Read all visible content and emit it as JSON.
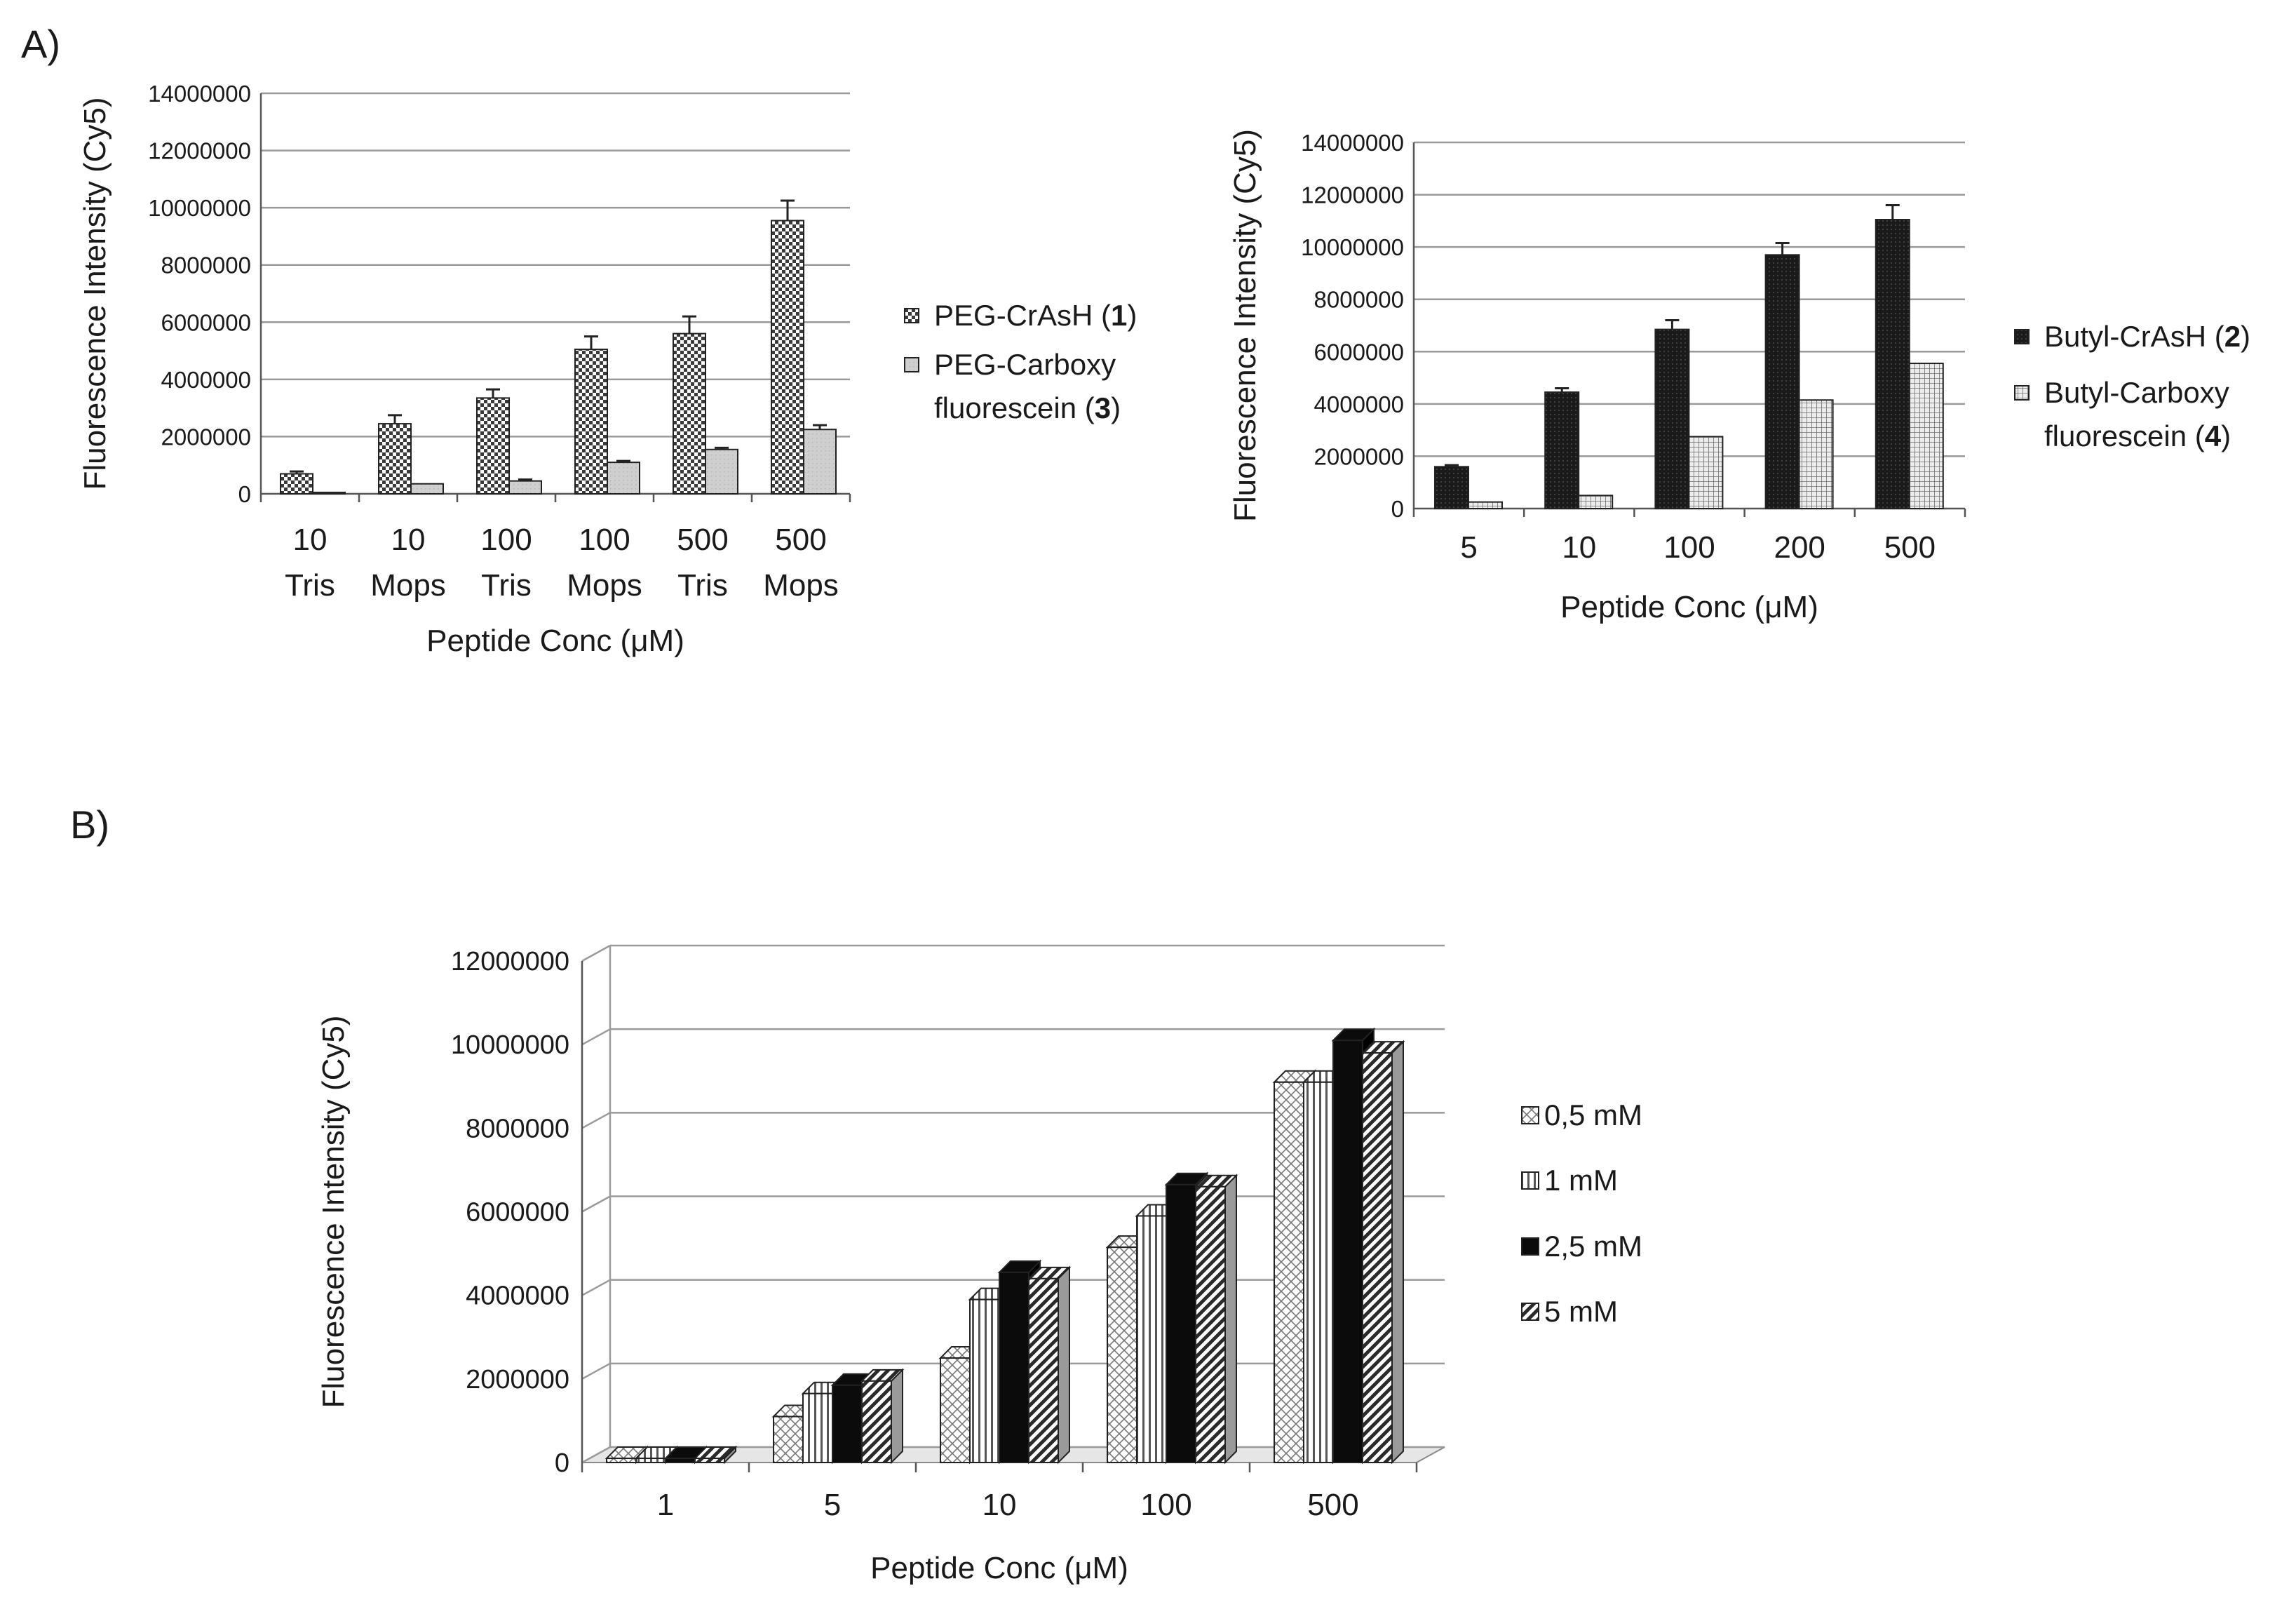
{
  "panels": {
    "a": "A)",
    "b": "B)"
  },
  "chart_data": [
    {
      "id": "chart1",
      "type": "bar",
      "ylabel": "Fluorescence Intensity (Cy5)",
      "xlabel": "Peptide Conc (μM)",
      "ylim": [
        0,
        14000000
      ],
      "yticks": [
        0,
        2000000,
        4000000,
        6000000,
        8000000,
        10000000,
        12000000,
        14000000
      ],
      "grid": true,
      "legend_position": "right",
      "categories": [
        [
          "10",
          "Tris"
        ],
        [
          "10",
          "Mops"
        ],
        [
          "100",
          "Tris"
        ],
        [
          "100",
          "Mops"
        ],
        [
          "500",
          "Tris"
        ],
        [
          "500",
          "Mops"
        ]
      ],
      "series": [
        {
          "name": "PEG-CrAsH (1)",
          "legend_lines": [
            [
              "PEG-CrAsH (",
              "1",
              ")"
            ]
          ],
          "pattern": "checker",
          "values": [
            700000,
            2450000,
            3350000,
            5050000,
            5600000,
            9550000
          ],
          "errors": [
            80000,
            300000,
            300000,
            450000,
            600000,
            700000
          ]
        },
        {
          "name": "PEG-Carboxy fluorescein (3)",
          "legend_lines": [
            [
              "PEG-Carboxy"
            ],
            [
              "fluorescein (",
              "3",
              ")"
            ]
          ],
          "pattern": "lightgray",
          "values": [
            50000,
            350000,
            450000,
            1100000,
            1550000,
            2250000
          ],
          "errors": [
            0,
            0,
            50000,
            50000,
            60000,
            150000
          ]
        }
      ]
    },
    {
      "id": "chart2",
      "type": "bar",
      "ylabel": "Fluorescence Intensity (Cy5)",
      "xlabel": "Peptide Conc (μM)",
      "ylim": [
        0,
        14000000
      ],
      "yticks": [
        0,
        2000000,
        4000000,
        6000000,
        8000000,
        10000000,
        12000000,
        14000000
      ],
      "grid": true,
      "legend_position": "right",
      "categories": [
        [
          "5"
        ],
        [
          "10"
        ],
        [
          "100"
        ],
        [
          "200"
        ],
        [
          "500"
        ]
      ],
      "series": [
        {
          "name": "Butyl-CrAsH (2)",
          "legend_lines": [
            [
              "Butyl-CrAsH (",
              "2",
              ")"
            ]
          ],
          "pattern": "darkdots",
          "values": [
            1600000,
            4450000,
            6850000,
            9700000,
            11050000
          ],
          "errors": [
            60000,
            150000,
            350000,
            450000,
            550000
          ]
        },
        {
          "name": "Butyl-Carboxy fluorescein (4)",
          "legend_lines": [
            [
              "Butyl-Carboxy"
            ],
            [
              "fluorescein (",
              "4",
              ")"
            ]
          ],
          "pattern": "grid",
          "values": [
            250000,
            500000,
            2750000,
            4150000,
            5550000
          ],
          "errors": [
            0,
            0,
            0,
            0,
            0
          ]
        }
      ]
    },
    {
      "id": "chart3",
      "type": "bar",
      "variant": "3d",
      "ylabel": "Fluorescence Intensity (Cy5)",
      "xlabel": "Peptide Conc (μM)",
      "ylim": [
        0,
        12000000
      ],
      "yticks": [
        0,
        2000000,
        4000000,
        6000000,
        8000000,
        10000000,
        12000000
      ],
      "grid": true,
      "legend_position": "right",
      "categories": [
        [
          "1"
        ],
        [
          "5"
        ],
        [
          "10"
        ],
        [
          "100"
        ],
        [
          "500"
        ]
      ],
      "series": [
        {
          "name": "0,5 mM",
          "legend_lines": [
            [
              "0,5 mM"
            ]
          ],
          "pattern": "crosshatch",
          "values": [
            100000,
            1100000,
            2500000,
            5150000,
            9100000
          ]
        },
        {
          "name": "1 mM",
          "legend_lines": [
            [
              "1 mM"
            ]
          ],
          "pattern": "vstripes",
          "values": [
            100000,
            1650000,
            3900000,
            5900000,
            9100000
          ]
        },
        {
          "name": "2,5 mM",
          "legend_lines": [
            [
              "2,5 mM"
            ]
          ],
          "pattern": "black",
          "values": [
            100000,
            1850000,
            4550000,
            6650000,
            10100000
          ]
        },
        {
          "name": "5 mM",
          "legend_lines": [
            [
              "5 mM"
            ]
          ],
          "pattern": "diag",
          "values": [
            100000,
            1950000,
            4400000,
            6600000,
            9800000
          ]
        }
      ]
    }
  ]
}
